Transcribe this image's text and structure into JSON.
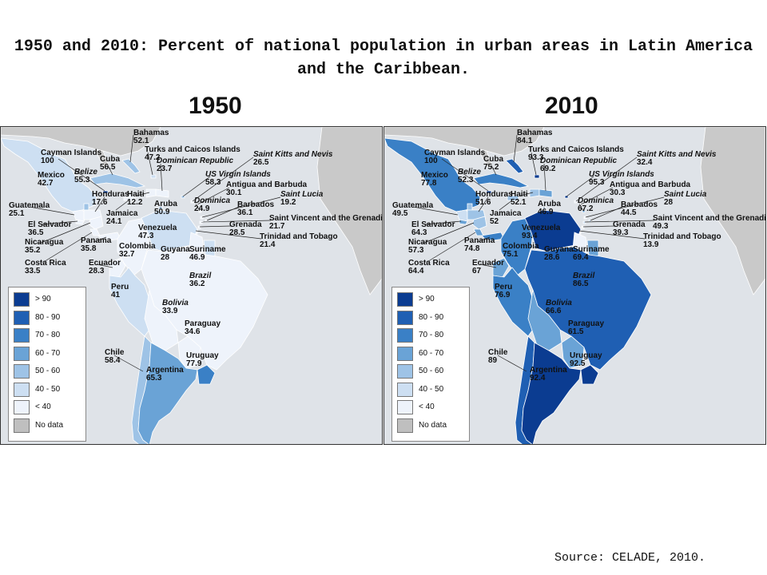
{
  "title": "1950 and 2010: Percent of national population in urban areas in Latin America and the Caribbean.",
  "source": "Source: CELADE, 2010.",
  "colors": {
    "water": "#dfe3e8",
    "other_land": "#c9c9c9",
    "bins": {
      "gt90": "#0b3c91",
      "80_90": "#1f5fb3",
      "70_80": "#3a80c6",
      "60_70": "#6aa3d6",
      "50_60": "#9ec3e6",
      "40_50": "#cddff2",
      "lt40": "#eef3fb",
      "nodata": "#bfbfbf"
    }
  },
  "legend": [
    {
      "label": "> 90",
      "bin": "gt90"
    },
    {
      "label": "80 - 90",
      "bin": "80_90"
    },
    {
      "label": "70 - 80",
      "bin": "70_80"
    },
    {
      "label": "60 - 70",
      "bin": "60_70"
    },
    {
      "label": "50 - 60",
      "bin": "50_60"
    },
    {
      "label": "40 - 50",
      "bin": "40_50"
    },
    {
      "label": "< 40",
      "bin": "lt40"
    },
    {
      "label": "No data",
      "bin": "nodata"
    }
  ],
  "maps": [
    {
      "year": "1950",
      "countries": {
        "bahamas": {
          "name": "Bahamas",
          "value": "52.1"
        },
        "turks_caicos": {
          "name": "Turks and Caicos Islands",
          "value": "47.2"
        },
        "cayman": {
          "name": "Cayman Islands",
          "value": "100"
        },
        "cuba": {
          "name": "Cuba",
          "value": "56.5"
        },
        "dominican_rep": {
          "name": "Dominican Republic",
          "value": "23.7"
        },
        "st_kitts": {
          "name": "Saint Kitts and Nevis",
          "value": "26.5"
        },
        "belize": {
          "name": "Belize",
          "value": "55.3"
        },
        "mexico": {
          "name": "Mexico",
          "value": "42.7"
        },
        "us_virgin": {
          "name": "US Virgin Islands",
          "value": "58.3"
        },
        "antigua": {
          "name": "Antigua and Barbuda",
          "value": "30.1"
        },
        "honduras": {
          "name": "Honduras",
          "value": "17.6"
        },
        "haiti": {
          "name": "Haiti",
          "value": "12.2"
        },
        "st_lucia": {
          "name": "Saint Lucia",
          "value": "19.2"
        },
        "dominica": {
          "name": "Dominica",
          "value": "24.9"
        },
        "guatemala": {
          "name": "Guatemala",
          "value": "25.1"
        },
        "aruba": {
          "name": "Aruba",
          "value": "50.9"
        },
        "barbados": {
          "name": "Barbados",
          "value": "36.1"
        },
        "jamaica": {
          "name": "Jamaica",
          "value": "24.1"
        },
        "st_vincent": {
          "name": "Saint Vincent and the Grenadines",
          "value": "21.7"
        },
        "el_salvador": {
          "name": "El Salvador",
          "value": "36.5"
        },
        "grenada": {
          "name": "Grenada",
          "value": "28.5"
        },
        "venezuela": {
          "name": "Venezuela",
          "value": "47.3"
        },
        "nicaragua": {
          "name": "Nicaragua",
          "value": "35.2"
        },
        "panama": {
          "name": "Panama",
          "value": "35.8"
        },
        "trinidad": {
          "name": "Trinidad and Tobago",
          "value": "21.4"
        },
        "colombia": {
          "name": "Colombia",
          "value": "32.7"
        },
        "guyana": {
          "name": "Guyana",
          "value": "28"
        },
        "suriname": {
          "name": "Suriname",
          "value": "46.9"
        },
        "costa_rica": {
          "name": "Costa Rica",
          "value": "33.5"
        },
        "ecuador": {
          "name": "Ecuador",
          "value": "28.3"
        },
        "brazil": {
          "name": "Brazil",
          "value": "36.2"
        },
        "peru": {
          "name": "Peru",
          "value": "41"
        },
        "bolivia": {
          "name": "Bolivia",
          "value": "33.9"
        },
        "paraguay": {
          "name": "Paraguay",
          "value": "34.6"
        },
        "chile": {
          "name": "Chile",
          "value": "58.4"
        },
        "uruguay": {
          "name": "Uruguay",
          "value": "77.9"
        },
        "argentina": {
          "name": "Argentina",
          "value": "65.3"
        }
      }
    },
    {
      "year": "2010",
      "countries": {
        "bahamas": {
          "name": "Bahamas",
          "value": "84.1"
        },
        "turks_caicos": {
          "name": "Turks and Caicos Islands",
          "value": "93.3"
        },
        "cayman": {
          "name": "Cayman Islands",
          "value": "100"
        },
        "cuba": {
          "name": "Cuba",
          "value": "75.2"
        },
        "dominican_rep": {
          "name": "Dominican Republic",
          "value": "69.2"
        },
        "st_kitts": {
          "name": "Saint Kitts and Nevis",
          "value": "32.4"
        },
        "belize": {
          "name": "Belize",
          "value": "52.3"
        },
        "mexico": {
          "name": "Mexico",
          "value": "77.8"
        },
        "us_virgin": {
          "name": "US Virgin Islands",
          "value": "95.3"
        },
        "antigua": {
          "name": "Antigua and Barbuda",
          "value": "30.3"
        },
        "honduras": {
          "name": "Honduras",
          "value": "51.6"
        },
        "haiti": {
          "name": "Haiti",
          "value": "52.1"
        },
        "st_lucia": {
          "name": "Saint Lucia",
          "value": "28"
        },
        "dominica": {
          "name": "Dominica",
          "value": "67.2"
        },
        "guatemala": {
          "name": "Guatemala",
          "value": "49.5"
        },
        "aruba": {
          "name": "Aruba",
          "value": "46.9"
        },
        "barbados": {
          "name": "Barbados",
          "value": "44.5"
        },
        "jamaica": {
          "name": "Jamaica",
          "value": "52"
        },
        "st_vincent": {
          "name": "Saint Vincent and the Grenadines",
          "value": "49.3"
        },
        "el_salvador": {
          "name": "El Salvador",
          "value": "64.3"
        },
        "grenada": {
          "name": "Grenada",
          "value": "39.3"
        },
        "venezuela": {
          "name": "Venezuela",
          "value": "93.4"
        },
        "nicaragua": {
          "name": "Nicaragua",
          "value": "57.3"
        },
        "panama": {
          "name": "Panama",
          "value": "74.8"
        },
        "trinidad": {
          "name": "Trinidad and Tobago",
          "value": "13.9"
        },
        "colombia": {
          "name": "Colombia",
          "value": "75.1"
        },
        "guyana": {
          "name": "Guyana",
          "value": "28.6"
        },
        "suriname": {
          "name": "Suriname",
          "value": "69.4"
        },
        "costa_rica": {
          "name": "Costa Rica",
          "value": "64.4"
        },
        "ecuador": {
          "name": "Ecuador",
          "value": "67"
        },
        "brazil": {
          "name": "Brazil",
          "value": "86.5"
        },
        "peru": {
          "name": "Peru",
          "value": "76.9"
        },
        "bolivia": {
          "name": "Bolivia",
          "value": "66.6"
        },
        "paraguay": {
          "name": "Paraguay",
          "value": "61.5"
        },
        "chile": {
          "name": "Chile",
          "value": "89"
        },
        "uruguay": {
          "name": "Uruguay",
          "value": "92.5"
        },
        "argentina": {
          "name": "Argentina",
          "value": "92.4"
        }
      }
    }
  ]
}
